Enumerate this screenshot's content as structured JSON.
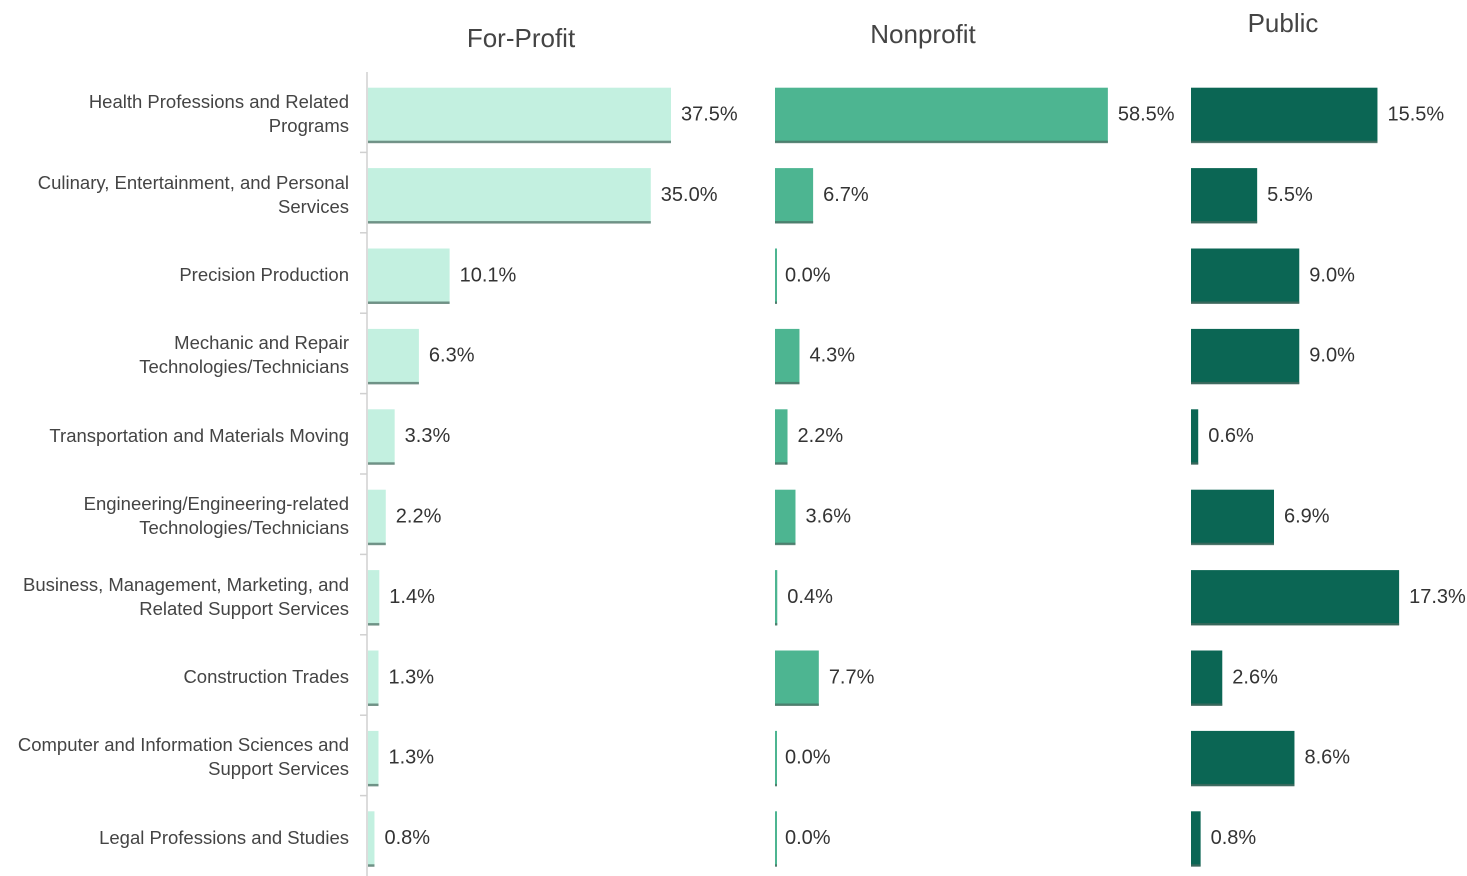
{
  "chart_data": {
    "type": "bar",
    "orientation": "horizontal",
    "categories": [
      "Health Professions and Related Programs",
      "Culinary, Entertainment, and Personal Services",
      "Precision Production",
      "Mechanic and Repair Technologies/Technicians",
      "Transportation and Materials Moving",
      "Engineering/Engineering-related Technologies/Technicians",
      "Business, Management, Marketing, and Related Support Services",
      "Construction Trades",
      "Computer and Information Sciences and Support Services",
      "Legal Professions and Studies"
    ],
    "series": [
      {
        "name": "For-Profit",
        "color": "#c3f0e0",
        "values": [
          37.5,
          35.0,
          10.1,
          6.3,
          3.3,
          2.2,
          1.4,
          1.3,
          1.3,
          0.8
        ],
        "value_labels": [
          "37.5%",
          "35.0%",
          "10.1%",
          "6.3%",
          "3.3%",
          "2.2%",
          "1.4%",
          "1.3%",
          "1.3%",
          "0.8%"
        ]
      },
      {
        "name": "Nonprofit",
        "color": "#4db591",
        "values": [
          58.5,
          6.7,
          0.0,
          4.3,
          2.2,
          3.6,
          0.4,
          7.7,
          0.0,
          0.0
        ],
        "value_labels": [
          "58.5%",
          "6.7%",
          "0.0%",
          "4.3%",
          "2.2%",
          "3.6%",
          "0.4%",
          "7.7%",
          "0.0%",
          "0.0%"
        ]
      },
      {
        "name": "Public",
        "color": "#0b6654",
        "values": [
          15.5,
          5.5,
          9.0,
          9.0,
          0.6,
          6.9,
          17.3,
          2.6,
          8.6,
          0.8
        ],
        "value_labels": [
          "15.5%",
          "5.5%",
          "9.0%",
          "9.0%",
          "0.6%",
          "6.9%",
          "17.3%",
          "2.6%",
          "8.6%",
          "0.8%"
        ]
      }
    ]
  }
}
